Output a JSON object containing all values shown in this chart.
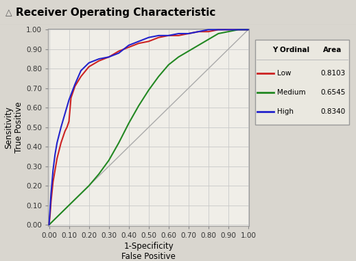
{
  "title": "Receiver Operating Characteristic",
  "xlabel1": "1-Specificity",
  "xlabel2": "False Positive",
  "ylabel1": "Sensitivity",
  "ylabel2": "True Positive",
  "background_color": "#d9d6cf",
  "plot_bg_color": "#f0eee8",
  "grid_color": "#c8c8c8",
  "legend_bg_color": "#eae8e0",
  "legend_header": [
    "Y Ordinal",
    "Area"
  ],
  "legend_entries": [
    {
      "label": "Low",
      "color": "#cc2222",
      "area": "0.8103"
    },
    {
      "label": "Medium",
      "color": "#228822",
      "area": "0.6545"
    },
    {
      "label": "High",
      "color": "#2222cc",
      "area": "0.8340"
    }
  ],
  "diagonal_color": "#aaaaaa",
  "curves": {
    "low": {
      "color": "#cc2222",
      "x": [
        0.0,
        0.005,
        0.01,
        0.02,
        0.04,
        0.06,
        0.08,
        0.09,
        0.1,
        0.11,
        0.13,
        0.16,
        0.2,
        0.25,
        0.3,
        0.35,
        0.4,
        0.45,
        0.5,
        0.55,
        0.6,
        0.65,
        0.7,
        0.75,
        0.8,
        0.85,
        0.9,
        0.95,
        1.0
      ],
      "y": [
        0.0,
        0.05,
        0.12,
        0.22,
        0.34,
        0.42,
        0.48,
        0.5,
        0.53,
        0.65,
        0.71,
        0.76,
        0.81,
        0.84,
        0.86,
        0.89,
        0.91,
        0.93,
        0.94,
        0.96,
        0.97,
        0.97,
        0.98,
        0.99,
        0.99,
        1.0,
        1.0,
        1.0,
        1.0
      ]
    },
    "medium": {
      "color": "#228822",
      "x": [
        0.0,
        0.01,
        0.02,
        0.04,
        0.06,
        0.08,
        0.1,
        0.13,
        0.16,
        0.2,
        0.25,
        0.3,
        0.35,
        0.4,
        0.45,
        0.5,
        0.55,
        0.6,
        0.65,
        0.7,
        0.75,
        0.8,
        0.85,
        0.9,
        0.95,
        1.0
      ],
      "y": [
        0.0,
        0.01,
        0.02,
        0.04,
        0.06,
        0.08,
        0.1,
        0.13,
        0.16,
        0.2,
        0.26,
        0.33,
        0.42,
        0.52,
        0.61,
        0.69,
        0.76,
        0.82,
        0.86,
        0.89,
        0.92,
        0.95,
        0.98,
        0.99,
        1.0,
        1.0
      ]
    },
    "high": {
      "color": "#2222cc",
      "x": [
        0.0,
        0.005,
        0.01,
        0.02,
        0.03,
        0.04,
        0.05,
        0.06,
        0.08,
        0.1,
        0.13,
        0.16,
        0.2,
        0.25,
        0.3,
        0.35,
        0.4,
        0.45,
        0.5,
        0.55,
        0.6,
        0.65,
        0.7,
        0.75,
        0.8,
        0.85,
        0.9,
        0.95,
        1.0
      ],
      "y": [
        0.0,
        0.08,
        0.16,
        0.28,
        0.36,
        0.42,
        0.46,
        0.5,
        0.57,
        0.64,
        0.72,
        0.79,
        0.83,
        0.85,
        0.86,
        0.88,
        0.92,
        0.94,
        0.96,
        0.97,
        0.97,
        0.98,
        0.98,
        0.99,
        1.0,
        1.0,
        1.0,
        1.0,
        1.0
      ]
    }
  }
}
